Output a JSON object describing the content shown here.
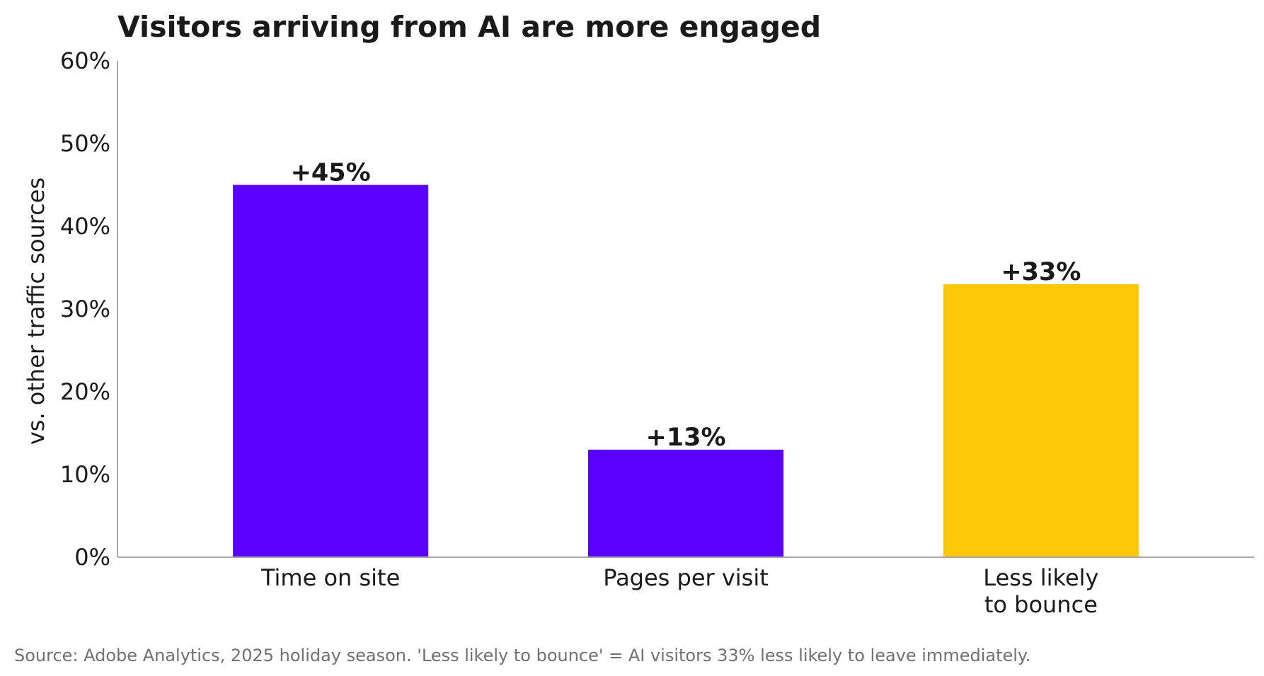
{
  "chart_data": {
    "type": "bar",
    "title": "Visitors arriving from AI are more engaged",
    "xlabel": "",
    "ylabel": "vs. other traffic sources",
    "categories": [
      "Time on site",
      "Pages per visit",
      "Less likely to bounce"
    ],
    "category_lines": [
      [
        "Time on site"
      ],
      [
        "Pages per visit"
      ],
      [
        "Less likely",
        "to bounce"
      ]
    ],
    "values": [
      45,
      13,
      33
    ],
    "data_labels": [
      "+45%",
      "+13%",
      "+33%"
    ],
    "bar_colors": [
      "#5a00ff",
      "#5a00ff",
      "#fec80a"
    ],
    "ylim": [
      0,
      60
    ],
    "yticks": [
      0,
      10,
      20,
      30,
      40,
      50,
      60
    ],
    "ytick_labels": [
      "0%",
      "10%",
      "20%",
      "30%",
      "40%",
      "50%",
      "60%"
    ],
    "grid": false,
    "legend": "none"
  },
  "source_note": "Source: Adobe Analytics, 2025 holiday season. 'Less likely to bounce' = AI visitors 33% less likely to leave immediately.",
  "colors": {
    "ai_purple": "#5a00ff",
    "bounce_yellow": "#fec80a",
    "axis_gray": "#a8a8a8",
    "text_dark": "#1a1a1a",
    "source_gray": "#707070"
  }
}
